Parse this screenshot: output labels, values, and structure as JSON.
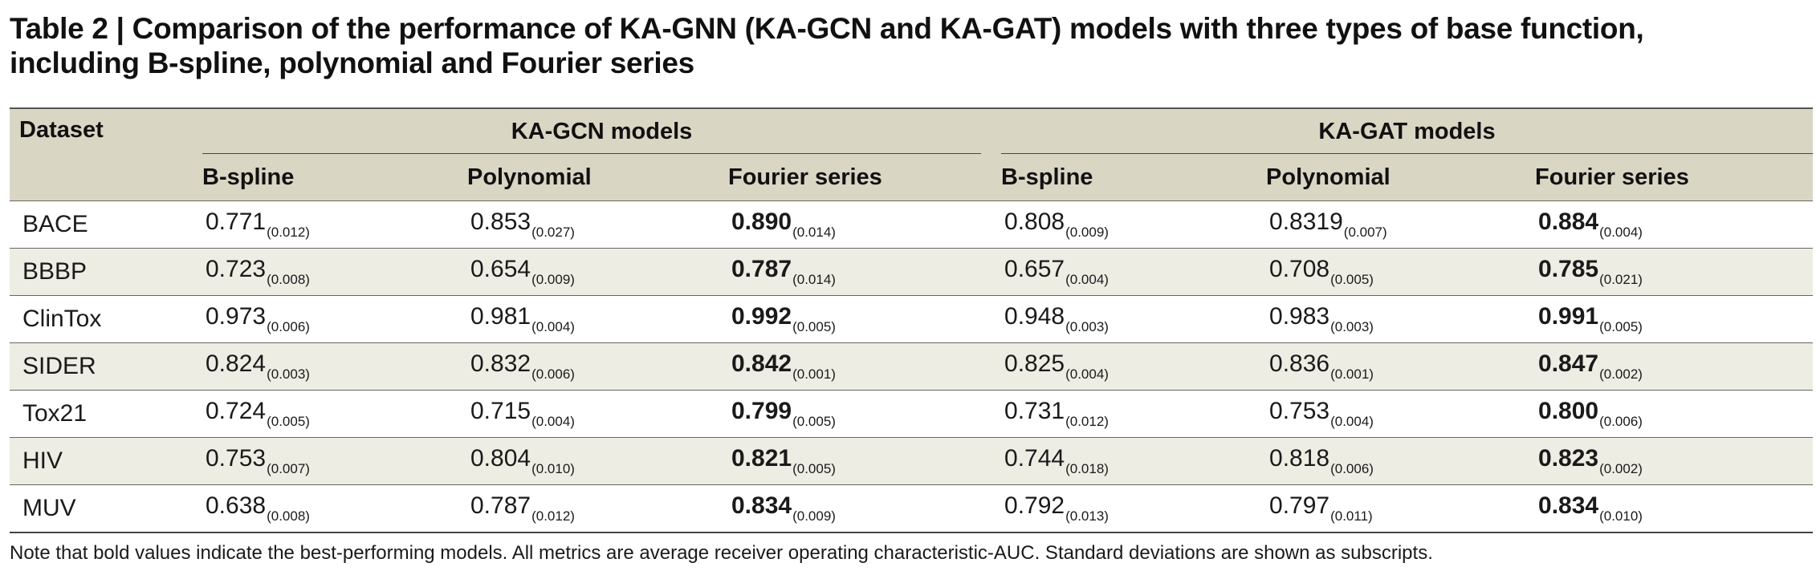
{
  "caption": {
    "label": "Table 2 |",
    "title": "Comparison of the performance of KA-GNN (KA-GCN and KA-GAT) models with three types of base function, including B-spline, polynomial and Fourier series"
  },
  "table": {
    "dataset_header": "Dataset",
    "groups": [
      {
        "label": "KA-GCN models",
        "columns": [
          "B-spline",
          "Polynomial",
          "Fourier series"
        ]
      },
      {
        "label": "KA-GAT models",
        "columns": [
          "B-spline",
          "Polynomial",
          "Fourier series"
        ]
      }
    ],
    "rows": [
      {
        "dataset": "BACE",
        "cells": [
          {
            "value": "0.771",
            "sd": "(0.012)",
            "bold": false
          },
          {
            "value": "0.853",
            "sd": "(0.027)",
            "bold": false
          },
          {
            "value": "0.890",
            "sd": "(0.014)",
            "bold": true
          },
          {
            "value": "0.808",
            "sd": "(0.009)",
            "bold": false
          },
          {
            "value": "0.8319",
            "sd": "(0.007)",
            "bold": false
          },
          {
            "value": "0.884",
            "sd": "(0.004)",
            "bold": true
          }
        ]
      },
      {
        "dataset": "BBBP",
        "cells": [
          {
            "value": "0.723",
            "sd": "(0.008)",
            "bold": false
          },
          {
            "value": "0.654",
            "sd": "(0.009)",
            "bold": false
          },
          {
            "value": "0.787",
            "sd": "(0.014)",
            "bold": true
          },
          {
            "value": "0.657",
            "sd": "(0.004)",
            "bold": false
          },
          {
            "value": "0.708",
            "sd": "(0.005)",
            "bold": false
          },
          {
            "value": "0.785",
            "sd": "(0.021)",
            "bold": true
          }
        ]
      },
      {
        "dataset": "ClinTox",
        "cells": [
          {
            "value": "0.973",
            "sd": "(0.006)",
            "bold": false
          },
          {
            "value": "0.981",
            "sd": "(0.004)",
            "bold": false
          },
          {
            "value": "0.992",
            "sd": "(0.005)",
            "bold": true
          },
          {
            "value": "0.948",
            "sd": "(0.003)",
            "bold": false
          },
          {
            "value": "0.983",
            "sd": "(0.003)",
            "bold": false
          },
          {
            "value": "0.991",
            "sd": "(0.005)",
            "bold": true
          }
        ]
      },
      {
        "dataset": "SIDER",
        "cells": [
          {
            "value": "0.824",
            "sd": "(0.003)",
            "bold": false
          },
          {
            "value": "0.832",
            "sd": "(0.006)",
            "bold": false
          },
          {
            "value": "0.842",
            "sd": "(0.001)",
            "bold": true
          },
          {
            "value": "0.825",
            "sd": "(0.004)",
            "bold": false
          },
          {
            "value": "0.836",
            "sd": "(0.001)",
            "bold": false
          },
          {
            "value": "0.847",
            "sd": "(0.002)",
            "bold": true
          }
        ]
      },
      {
        "dataset": "Tox21",
        "cells": [
          {
            "value": "0.724",
            "sd": "(0.005)",
            "bold": false
          },
          {
            "value": "0.715",
            "sd": "(0.004)",
            "bold": false
          },
          {
            "value": "0.799",
            "sd": "(0.005)",
            "bold": true
          },
          {
            "value": "0.731",
            "sd": "(0.012)",
            "bold": false
          },
          {
            "value": "0.753",
            "sd": "(0.004)",
            "bold": false
          },
          {
            "value": "0.800",
            "sd": "(0.006)",
            "bold": true
          }
        ]
      },
      {
        "dataset": "HIV",
        "cells": [
          {
            "value": "0.753",
            "sd": "(0.007)",
            "bold": false
          },
          {
            "value": "0.804",
            "sd": "(0.010)",
            "bold": false
          },
          {
            "value": "0.821",
            "sd": "(0.005)",
            "bold": true
          },
          {
            "value": "0.744",
            "sd": "(0.018)",
            "bold": false
          },
          {
            "value": "0.818",
            "sd": "(0.006)",
            "bold": false
          },
          {
            "value": "0.823",
            "sd": "(0.002)",
            "bold": true
          }
        ]
      },
      {
        "dataset": "MUV",
        "cells": [
          {
            "value": "0.638",
            "sd": "(0.008)",
            "bold": false
          },
          {
            "value": "0.787",
            "sd": "(0.012)",
            "bold": false
          },
          {
            "value": "0.834",
            "sd": "(0.009)",
            "bold": true
          },
          {
            "value": "0.792",
            "sd": "(0.013)",
            "bold": false
          },
          {
            "value": "0.797",
            "sd": "(0.011)",
            "bold": false
          },
          {
            "value": "0.834",
            "sd": "(0.010)",
            "bold": true
          }
        ]
      }
    ]
  },
  "note": "Note that bold values indicate the best-performing models. All metrics are average receiver operating characteristic-AUC. Standard deviations are shown as subscripts.",
  "colors": {
    "header_bg": "#d9d6c4",
    "stripe_bg": "#eeede4"
  }
}
